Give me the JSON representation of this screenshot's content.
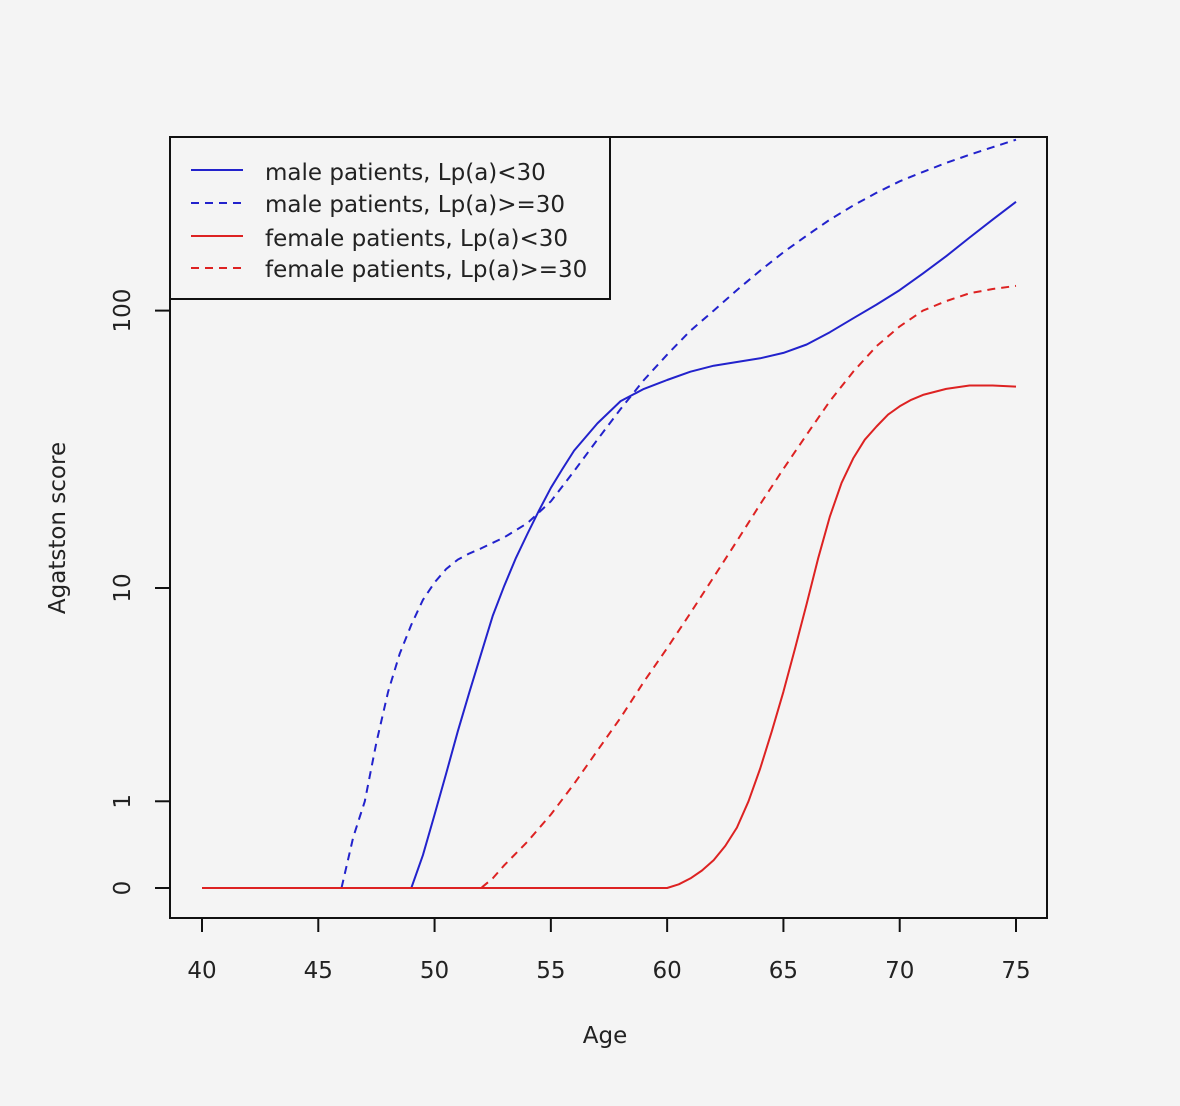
{
  "chart_data": {
    "type": "line",
    "title": "",
    "xlabel": "Age",
    "ylabel": "Agatston score",
    "xlim": [
      40,
      75
    ],
    "x_ticks": [
      "40",
      "45",
      "50",
      "55",
      "60",
      "65",
      "70",
      "75"
    ],
    "y_ticks": [
      {
        "label": "0",
        "value": 0
      },
      {
        "label": "1",
        "value": 1
      },
      {
        "label": "10",
        "value": 10
      },
      {
        "label": "100",
        "value": 100
      }
    ],
    "y_scale": "log(y+1)",
    "legend_position": "top-left",
    "series": [
      {
        "name": "male patients, Lp(a)<30",
        "color": "#2222cc",
        "dash": "solid",
        "points": [
          [
            40,
            0
          ],
          [
            45,
            0
          ],
          [
            48,
            0
          ],
          [
            49,
            0
          ],
          [
            49.5,
            0.3
          ],
          [
            50,
            0.8
          ],
          [
            50.5,
            1.5
          ],
          [
            51,
            2.5
          ],
          [
            51.5,
            3.8
          ],
          [
            52,
            5.5
          ],
          [
            52.5,
            7.8
          ],
          [
            53,
            10.2
          ],
          [
            53.5,
            13
          ],
          [
            54,
            16
          ],
          [
            54.5,
            19.5
          ],
          [
            55,
            23.5
          ],
          [
            55.5,
            27.5
          ],
          [
            56,
            32
          ],
          [
            57,
            40
          ],
          [
            58,
            48
          ],
          [
            59,
            53
          ],
          [
            60,
            57
          ],
          [
            61,
            61
          ],
          [
            62,
            64
          ],
          [
            63,
            66
          ],
          [
            64,
            68
          ],
          [
            65,
            71
          ],
          [
            66,
            76
          ],
          [
            67,
            84
          ],
          [
            68,
            94
          ],
          [
            69,
            105
          ],
          [
            70,
            118
          ],
          [
            71,
            135
          ],
          [
            72,
            155
          ],
          [
            73,
            180
          ],
          [
            74,
            208
          ],
          [
            75,
            240
          ]
        ]
      },
      {
        "name": "male patients, Lp(a)>=30",
        "color": "#2222cc",
        "dash": "dashed",
        "points": [
          [
            40,
            0
          ],
          [
            45,
            0
          ],
          [
            46,
            0
          ],
          [
            46.5,
            0.5
          ],
          [
            47,
            1.0
          ],
          [
            47.5,
            2.2
          ],
          [
            48,
            3.8
          ],
          [
            48.5,
            5.5
          ],
          [
            49,
            7.2
          ],
          [
            49.5,
            9.0
          ],
          [
            50,
            10.5
          ],
          [
            50.5,
            11.8
          ],
          [
            51,
            12.8
          ],
          [
            51.5,
            13.5
          ],
          [
            52,
            14.1
          ],
          [
            53,
            15.5
          ],
          [
            54,
            17.5
          ],
          [
            55,
            21
          ],
          [
            56,
            27
          ],
          [
            57,
            35
          ],
          [
            58,
            45
          ],
          [
            59,
            57
          ],
          [
            60,
            70
          ],
          [
            61,
            85
          ],
          [
            62,
            100
          ],
          [
            63,
            118
          ],
          [
            64,
            138
          ],
          [
            65,
            160
          ],
          [
            66,
            183
          ],
          [
            67,
            208
          ],
          [
            68,
            233
          ],
          [
            69,
            258
          ],
          [
            70,
            283
          ],
          [
            71,
            305
          ],
          [
            72,
            328
          ],
          [
            73,
            350
          ],
          [
            74,
            372
          ],
          [
            75,
            395
          ]
        ]
      },
      {
        "name": "female patients, Lp(a)<30",
        "color": "#dd2222",
        "dash": "solid",
        "points": [
          [
            40,
            0
          ],
          [
            50,
            0
          ],
          [
            55,
            0
          ],
          [
            59,
            0
          ],
          [
            60,
            0
          ],
          [
            60.5,
            0.03
          ],
          [
            61,
            0.08
          ],
          [
            61.5,
            0.15
          ],
          [
            62,
            0.25
          ],
          [
            62.5,
            0.4
          ],
          [
            63,
            0.62
          ],
          [
            63.5,
            1.0
          ],
          [
            64,
            1.6
          ],
          [
            64.5,
            2.5
          ],
          [
            65,
            3.8
          ],
          [
            65.5,
            5.8
          ],
          [
            66,
            8.7
          ],
          [
            66.5,
            13
          ],
          [
            67,
            18.5
          ],
          [
            67.5,
            24.5
          ],
          [
            68,
            30
          ],
          [
            68.5,
            35
          ],
          [
            69,
            39
          ],
          [
            69.5,
            43
          ],
          [
            70,
            46
          ],
          [
            70.5,
            48.5
          ],
          [
            71,
            50.5
          ],
          [
            72,
            53
          ],
          [
            73,
            54.5
          ],
          [
            74,
            54.5
          ],
          [
            75,
            54
          ]
        ]
      },
      {
        "name": "female patients, Lp(a)>=30",
        "color": "#dd2222",
        "dash": "dashed",
        "points": [
          [
            40,
            0
          ],
          [
            50,
            0
          ],
          [
            52,
            0
          ],
          [
            52.5,
            0.08
          ],
          [
            53,
            0.2
          ],
          [
            54,
            0.45
          ],
          [
            55,
            0.8
          ],
          [
            56,
            1.3
          ],
          [
            57,
            2.0
          ],
          [
            58,
            2.9
          ],
          [
            59,
            4.2
          ],
          [
            60,
            5.8
          ],
          [
            61,
            8.0
          ],
          [
            62,
            11
          ],
          [
            63,
            15
          ],
          [
            64,
            20.5
          ],
          [
            65,
            27.5
          ],
          [
            66,
            36.5
          ],
          [
            67,
            48
          ],
          [
            68,
            61
          ],
          [
            69,
            75
          ],
          [
            70,
            88
          ],
          [
            71,
            100
          ],
          [
            72,
            108
          ],
          [
            73,
            115
          ],
          [
            74,
            119
          ],
          [
            75,
            122
          ]
        ]
      }
    ]
  }
}
